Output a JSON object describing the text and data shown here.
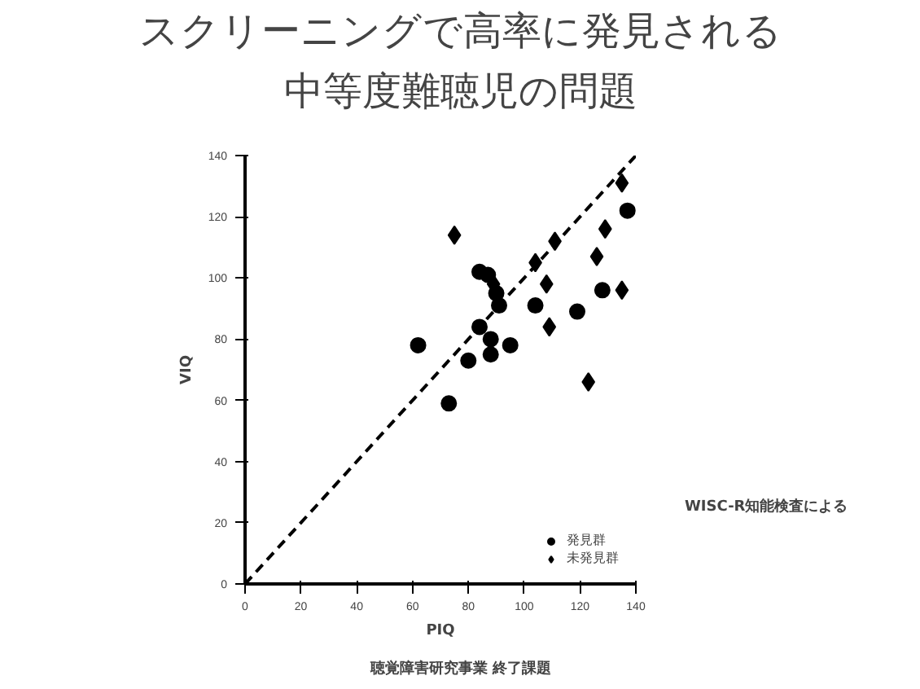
{
  "chart_data": {
    "type": "scatter",
    "title": "スクリーニングで高率に発見される",
    "subtitle": "中等度難聴児の問題",
    "xlabel": "PIQ",
    "ylabel": "VIQ",
    "xlim": [
      0,
      140
    ],
    "ylim": [
      0,
      140
    ],
    "xticks": [
      0,
      20,
      40,
      60,
      80,
      100,
      120,
      140
    ],
    "yticks": [
      0,
      20,
      40,
      60,
      80,
      100,
      120,
      140
    ],
    "series": [
      {
        "name": "発見群",
        "color": "#000000",
        "marker": "circle",
        "x": [
          62,
          73,
          80,
          84,
          84,
          87,
          88,
          88,
          90,
          91,
          95,
          104,
          119,
          128,
          137
        ],
        "values": [
          78,
          59,
          73,
          84,
          102,
          101,
          80,
          75,
          95,
          91,
          78,
          91,
          89,
          96,
          122
        ]
      },
      {
        "name": "未発見群",
        "color": "#000000",
        "marker": "diamond",
        "x": [
          75,
          89,
          104,
          108,
          109,
          111,
          123,
          126,
          129,
          135,
          135
        ],
        "values": [
          114,
          98,
          105,
          98,
          84,
          112,
          66,
          107,
          116,
          131,
          96
        ]
      },
      {
        "type": "line",
        "line_style": "dashed",
        "color": "#000000",
        "x": [
          0,
          140
        ],
        "values": [
          0,
          140
        ]
      }
    ],
    "legend": "bottom right",
    "grid": false,
    "annotations": [
      "WISC-R知能検査による",
      "聴覚障害研究事業 終了課題"
    ]
  }
}
